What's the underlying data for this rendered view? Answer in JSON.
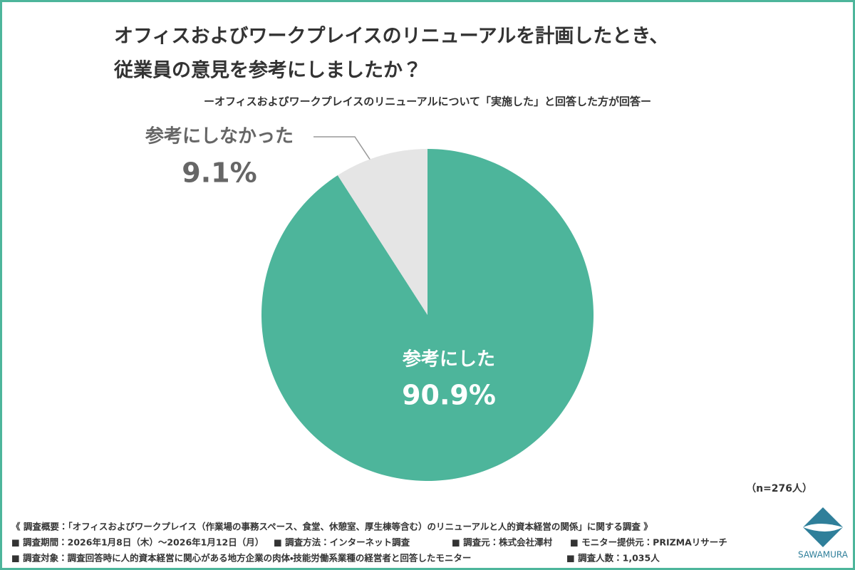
{
  "chart_data": {
    "type": "pie",
    "title": [
      "オフィスおよびワークプレイスのリニューアルを計画したとき、",
      "従業員の意見を参考にしましたか？"
    ],
    "subtitle": "ーオフィスおよびワークプレイスのリニューアルについて「実施した」と回答した方が回答ー",
    "categories": [
      "参考にした",
      "参考にしなかった"
    ],
    "values": [
      90.9,
      9.1
    ],
    "value_labels": [
      "90.9%",
      "9.1%"
    ],
    "colors": [
      "#4db59b",
      "#e5e5e5"
    ],
    "sample_note": "（n=276人）",
    "notes": [
      [
        "《 調査概要：「オフィスおよびワークプレイス（作業場の事務スペース、食堂、休憩室、厚生棟等含む）のリニューアルと人的資本経営の関係」に関する調査 》"
      ],
      [
        "■ 調査期間：2026年1月8日（木）〜2026年1月12日（月）",
        "■ 調査方法：インターネット調査",
        "■ 調査元：株式会社澤村",
        "■ モニター提供元：PRIZMAリサーチ"
      ],
      [
        "■ 調査対象：調査回答時に人的資本経営に関心がある地方企業の肉体・技能労働系業種の経営者と回答したモニター",
        "■ 調査人数：1,035人"
      ]
    ],
    "logo": "SAWAMURA"
  }
}
